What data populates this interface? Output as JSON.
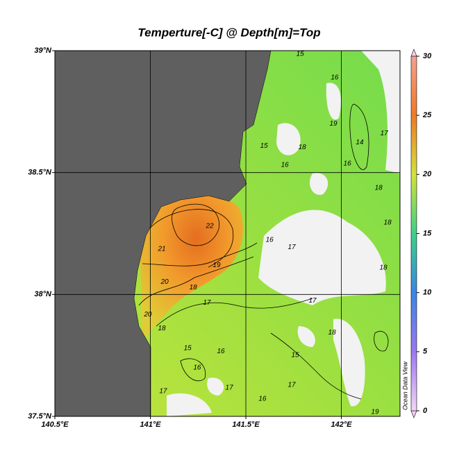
{
  "chart_data": {
    "type": "map",
    "title": "Temperture[-C] @ Depth[m]=Top",
    "credit": "Ocean Data View",
    "xlim": [
      140.5,
      142.307
    ],
    "ylim": [
      37.5,
      39.0
    ],
    "xticks": [
      {
        "value": 140.5,
        "label": "140.5°E"
      },
      {
        "value": 141,
        "label": "141°E"
      },
      {
        "value": 141.5,
        "label": "141.5°E"
      },
      {
        "value": 142,
        "label": "142°E"
      }
    ],
    "yticks": [
      {
        "value": 37.5,
        "label": "37.5°N"
      },
      {
        "value": 38,
        "label": "38°N"
      },
      {
        "value": 38.5,
        "label": "38.5°N"
      },
      {
        "value": 39,
        "label": "39°N"
      }
    ],
    "grid": true,
    "colorbar": {
      "lim": [
        0,
        30
      ],
      "ticks": [
        0,
        5,
        10,
        15,
        20,
        25,
        30
      ],
      "colors": [
        "#f4d4f4",
        "#9a78f0",
        "#3a86e4",
        "#3ed08a",
        "#d2e23a",
        "#f07a24",
        "#f4a090"
      ]
    },
    "contour_labels": [
      {
        "lon": 141.311,
        "lat": 38.28,
        "value": 22
      },
      {
        "lon": 141.06,
        "lat": 38.186,
        "value": 21
      },
      {
        "lon": 141.075,
        "lat": 38.051,
        "value": 20
      },
      {
        "lon": 140.987,
        "lat": 37.917,
        "value": 20
      },
      {
        "lon": 141.347,
        "lat": 38.12,
        "value": 19
      },
      {
        "lon": 141.224,
        "lat": 38.029,
        "value": 18
      },
      {
        "lon": 141.296,
        "lat": 37.966,
        "value": 17
      },
      {
        "lon": 141.06,
        "lat": 37.86,
        "value": 18
      },
      {
        "lon": 141.195,
        "lat": 37.78,
        "value": 15
      },
      {
        "lon": 141.245,
        "lat": 37.7,
        "value": 16
      },
      {
        "lon": 141.067,
        "lat": 37.603,
        "value": 17
      },
      {
        "lon": 141.413,
        "lat": 37.617,
        "value": 17
      },
      {
        "lon": 141.587,
        "lat": 37.571,
        "value": 16
      },
      {
        "lon": 141.74,
        "lat": 37.629,
        "value": 17
      },
      {
        "lon": 141.951,
        "lat": 37.843,
        "value": 18
      },
      {
        "lon": 142.176,
        "lat": 37.517,
        "value": 19
      },
      {
        "lon": 141.595,
        "lat": 38.609,
        "value": 15
      },
      {
        "lon": 141.795,
        "lat": 38.603,
        "value": 18
      },
      {
        "lon": 141.704,
        "lat": 38.531,
        "value": 16
      },
      {
        "lon": 142.031,
        "lat": 38.537,
        "value": 16
      },
      {
        "lon": 142.096,
        "lat": 38.623,
        "value": 14
      },
      {
        "lon": 142.224,
        "lat": 38.66,
        "value": 17
      },
      {
        "lon": 142.195,
        "lat": 38.437,
        "value": 18
      },
      {
        "lon": 142.242,
        "lat": 38.294,
        "value": 18
      },
      {
        "lon": 141.624,
        "lat": 38.223,
        "value": 16
      },
      {
        "lon": 141.74,
        "lat": 38.194,
        "value": 17
      },
      {
        "lon": 142.22,
        "lat": 38.109,
        "value": 18
      },
      {
        "lon": 141.849,
        "lat": 37.974,
        "value": 17
      },
      {
        "lon": 141.758,
        "lat": 37.751,
        "value": 15
      },
      {
        "lon": 141.369,
        "lat": 37.766,
        "value": 16
      },
      {
        "lon": 141.958,
        "lat": 38.7,
        "value": 19
      },
      {
        "lon": 141.965,
        "lat": 38.889,
        "value": 16
      },
      {
        "lon": 141.784,
        "lat": 38.986,
        "value": 15
      }
    ]
  }
}
